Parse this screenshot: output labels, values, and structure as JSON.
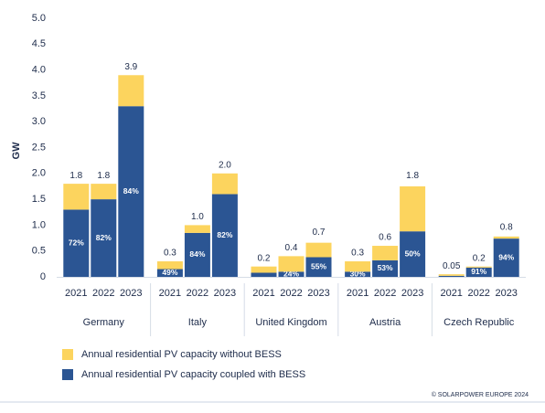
{
  "chart_data": {
    "type": "stacked_bar",
    "y_label": "GW",
    "categories": [
      "2021",
      "2022",
      "2023",
      "2021",
      "2022",
      "2023",
      "2021",
      "2022",
      "2023",
      "2021",
      "2022",
      "2023",
      "2021",
      "2022",
      "2023"
    ],
    "groups": [
      "Germany",
      "Italy",
      "United Kingdom",
      "Austria",
      "Czech Republic"
    ],
    "series": [
      {
        "name": "Annual residential PV capacity coupled with BESS",
        "color": "#2b5593",
        "values": [
          1.3,
          1.5,
          3.3,
          0.15,
          0.85,
          1.6,
          0.08,
          0.1,
          0.38,
          0.1,
          0.32,
          0.88,
          0.02,
          0.18,
          0.74
        ]
      },
      {
        "name": "Annual residential PV capacity without BESS",
        "color": "#fcd45e",
        "values": [
          0.5,
          0.3,
          0.6,
          0.15,
          0.15,
          0.4,
          0.12,
          0.3,
          0.28,
          0.2,
          0.28,
          0.87,
          0.03,
          0.02,
          0.04
        ]
      }
    ],
    "totals": {
      "values": [
        1.8,
        1.8,
        3.9,
        0.3,
        1.0,
        2.0,
        0.2,
        0.4,
        0.7,
        0.3,
        0.6,
        1.8,
        0.05,
        0.2,
        0.8
      ],
      "value_labels": [
        "1.8",
        "1.8",
        "3.9",
        "0.3",
        "1.0",
        "2.0",
        "0.2",
        "0.4",
        "0.7",
        "0.3",
        "0.6",
        "1.8",
        "0.05",
        "0.2",
        "0.8"
      ]
    },
    "shares": {
      "values": [
        72,
        82,
        84,
        49,
        84,
        82,
        null,
        24,
        55,
        30,
        53,
        50,
        null,
        91,
        94
      ],
      "value_labels": [
        "72%",
        "82%",
        "84%",
        "49%",
        "84%",
        "82%",
        null,
        "24%",
        "55%",
        "30%",
        "53%",
        "50%",
        null,
        "91%",
        "94%"
      ]
    },
    "ylim": [
      0,
      5
    ],
    "yticks": [
      0,
      0.5,
      {
        "value": 1,
        "label": "1.0"
      },
      1.5,
      {
        "value": 2,
        "label": "2.0"
      },
      2.5,
      {
        "value": 3,
        "label": "3.0"
      },
      3.5,
      {
        "value": 4,
        "label": "4.0"
      },
      4.5,
      {
        "value": 5,
        "label": "5.0"
      }
    ],
    "grid": false,
    "source": "© SOLARPOWER EUROPE 2024"
  }
}
